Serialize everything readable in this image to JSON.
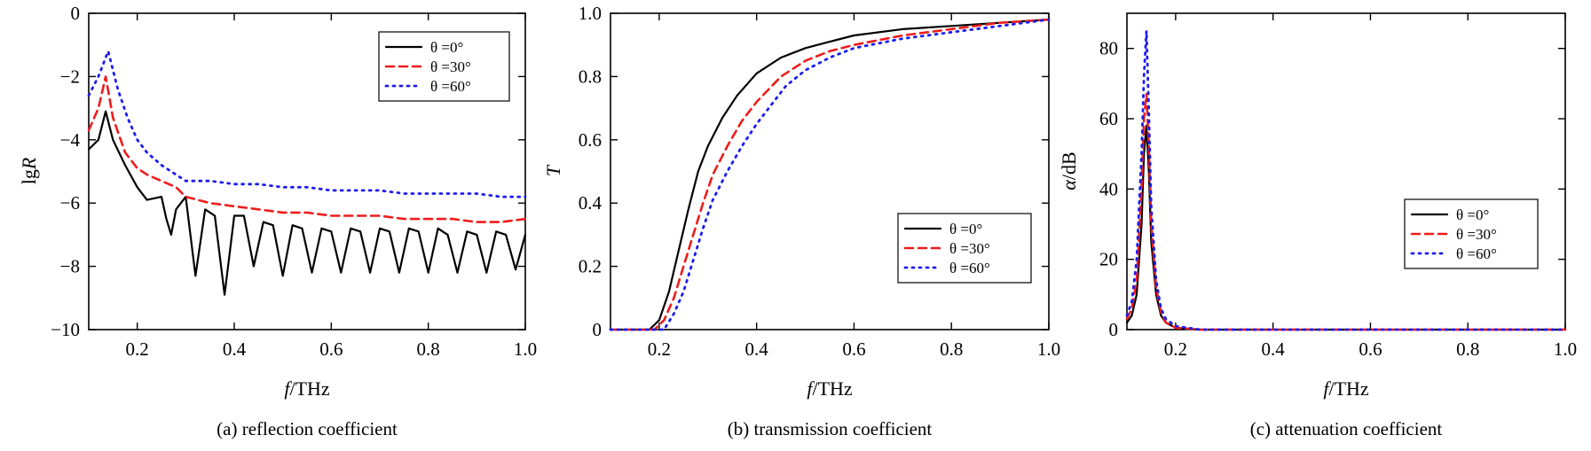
{
  "figure": {
    "panels": [
      {
        "caption": "(a) reflection coefficient"
      },
      {
        "caption": "(b) transmission coefficient"
      },
      {
        "caption": "(c) attenuation coefficient"
      }
    ]
  },
  "legend_labels": [
    "θ =0°",
    "θ =30°",
    "θ =60°"
  ],
  "series_colors": [
    "#000000",
    "#ee1c1c",
    "#1c1cee"
  ],
  "series_styles": [
    "solid",
    "dashed",
    "dotted"
  ],
  "chart_data": [
    {
      "type": "line",
      "title": "(a) reflection coefficient",
      "xlabel_italic": "f",
      "xlabel_rest": "/THz",
      "ylabel_rest": "lg",
      "ylabel_italic": "R",
      "xlim": [
        0.1,
        1.0
      ],
      "ylim": [
        -10,
        0
      ],
      "xticks": [
        0.2,
        0.4,
        0.6,
        0.8,
        1.0
      ],
      "xtick_labels": [
        "0.2",
        "0.4",
        "0.6",
        "0.8",
        "1.0"
      ],
      "yticks": [
        -10,
        -8,
        -6,
        -4,
        -2,
        0
      ],
      "ytick_labels": [
        "−10",
        "−8",
        "−6",
        "−4",
        "−2",
        "0"
      ],
      "legend_position": "top-right",
      "series": [
        {
          "name": "θ =0°",
          "x": [
            0.1,
            0.12,
            0.135,
            0.15,
            0.175,
            0.2,
            0.22,
            0.25,
            0.26,
            0.27,
            0.28,
            0.3,
            0.32,
            0.34,
            0.36,
            0.38,
            0.4,
            0.42,
            0.44,
            0.46,
            0.48,
            0.5,
            0.52,
            0.54,
            0.56,
            0.58,
            0.6,
            0.62,
            0.64,
            0.66,
            0.68,
            0.7,
            0.72,
            0.74,
            0.76,
            0.78,
            0.8,
            0.82,
            0.84,
            0.86,
            0.88,
            0.9,
            0.92,
            0.94,
            0.96,
            0.98,
            1.0
          ],
          "y": [
            -4.3,
            -4.0,
            -3.1,
            -4.0,
            -4.8,
            -5.5,
            -5.9,
            -5.8,
            -6.5,
            -7.0,
            -6.2,
            -5.8,
            -8.3,
            -6.2,
            -6.4,
            -8.9,
            -6.4,
            -6.4,
            -8.0,
            -6.6,
            -6.7,
            -8.3,
            -6.7,
            -6.8,
            -8.2,
            -6.8,
            -6.9,
            -8.2,
            -6.8,
            -6.9,
            -8.2,
            -6.8,
            -6.9,
            -8.2,
            -6.8,
            -6.9,
            -8.2,
            -6.8,
            -7.0,
            -8.2,
            -6.9,
            -7.0,
            -8.2,
            -6.9,
            -7.0,
            -8.1,
            -7.0
          ]
        },
        {
          "name": "θ =30°",
          "x": [
            0.1,
            0.12,
            0.135,
            0.15,
            0.175,
            0.2,
            0.22,
            0.25,
            0.28,
            0.3,
            0.35,
            0.4,
            0.45,
            0.5,
            0.55,
            0.6,
            0.65,
            0.7,
            0.75,
            0.8,
            0.85,
            0.9,
            0.95,
            1.0
          ],
          "y": [
            -3.7,
            -3.0,
            -2.0,
            -3.3,
            -4.4,
            -4.9,
            -5.1,
            -5.3,
            -5.5,
            -5.8,
            -6.0,
            -6.1,
            -6.2,
            -6.3,
            -6.3,
            -6.4,
            -6.4,
            -6.4,
            -6.5,
            -6.5,
            -6.5,
            -6.6,
            -6.6,
            -6.5
          ]
        },
        {
          "name": "θ =60°",
          "x": [
            0.1,
            0.12,
            0.14,
            0.16,
            0.18,
            0.2,
            0.22,
            0.25,
            0.28,
            0.3,
            0.35,
            0.4,
            0.45,
            0.5,
            0.55,
            0.6,
            0.65,
            0.7,
            0.75,
            0.8,
            0.85,
            0.9,
            0.95,
            1.0
          ],
          "y": [
            -2.6,
            -2.0,
            -1.2,
            -2.4,
            -3.3,
            -4.0,
            -4.4,
            -4.8,
            -5.1,
            -5.3,
            -5.3,
            -5.4,
            -5.4,
            -5.5,
            -5.5,
            -5.6,
            -5.6,
            -5.6,
            -5.7,
            -5.7,
            -5.7,
            -5.7,
            -5.8,
            -5.8
          ]
        }
      ]
    },
    {
      "type": "line",
      "title": "(b) transmission coefficient",
      "xlabel_italic": "f",
      "xlabel_rest": "/THz",
      "ylabel_rest": "",
      "ylabel_italic": "T",
      "xlim": [
        0.1,
        1.0
      ],
      "ylim": [
        0,
        1.0
      ],
      "xticks": [
        0.2,
        0.4,
        0.6,
        0.8,
        1.0
      ],
      "xtick_labels": [
        "0.2",
        "0.4",
        "0.6",
        "0.8",
        "1.0"
      ],
      "yticks": [
        0,
        0.2,
        0.4,
        0.6,
        0.8,
        1.0
      ],
      "ytick_labels": [
        "0",
        "0.2",
        "0.4",
        "0.6",
        "0.8",
        "1.0"
      ],
      "legend_position": "bottom-right",
      "series": [
        {
          "name": "θ =0°",
          "x": [
            0.1,
            0.18,
            0.2,
            0.22,
            0.24,
            0.26,
            0.28,
            0.3,
            0.33,
            0.36,
            0.4,
            0.45,
            0.5,
            0.55,
            0.6,
            0.7,
            0.8,
            0.9,
            1.0
          ],
          "y": [
            0,
            0,
            0.03,
            0.12,
            0.25,
            0.38,
            0.5,
            0.58,
            0.67,
            0.74,
            0.81,
            0.86,
            0.89,
            0.91,
            0.93,
            0.95,
            0.96,
            0.97,
            0.98
          ]
        },
        {
          "name": "θ =30°",
          "x": [
            0.1,
            0.19,
            0.21,
            0.23,
            0.25,
            0.27,
            0.29,
            0.31,
            0.34,
            0.37,
            0.4,
            0.45,
            0.5,
            0.55,
            0.6,
            0.7,
            0.8,
            0.9,
            1.0
          ],
          "y": [
            0,
            0,
            0.03,
            0.1,
            0.2,
            0.3,
            0.4,
            0.49,
            0.58,
            0.66,
            0.72,
            0.8,
            0.85,
            0.88,
            0.9,
            0.93,
            0.95,
            0.97,
            0.98
          ]
        },
        {
          "name": "θ =60°",
          "x": [
            0.1,
            0.21,
            0.23,
            0.25,
            0.27,
            0.29,
            0.31,
            0.34,
            0.37,
            0.4,
            0.43,
            0.46,
            0.5,
            0.55,
            0.6,
            0.7,
            0.8,
            0.9,
            1.0
          ],
          "y": [
            0,
            0,
            0.05,
            0.12,
            0.22,
            0.32,
            0.41,
            0.5,
            0.58,
            0.65,
            0.71,
            0.77,
            0.82,
            0.86,
            0.89,
            0.92,
            0.94,
            0.96,
            0.98
          ]
        }
      ]
    },
    {
      "type": "line",
      "title": "(c) attenuation coefficient",
      "xlabel_italic": "f",
      "xlabel_rest": "/THz",
      "ylabel_rest": "/dB",
      "ylabel_italic": "α",
      "xlim": [
        0.1,
        1.0
      ],
      "ylim": [
        0,
        90
      ],
      "xticks": [
        0.2,
        0.4,
        0.6,
        0.8,
        1.0
      ],
      "xtick_labels": [
        "0.2",
        "0.4",
        "0.6",
        "0.8",
        "1.0"
      ],
      "yticks": [
        0,
        20,
        40,
        60,
        80
      ],
      "ytick_labels": [
        "0",
        "20",
        "40",
        "60",
        "80"
      ],
      "legend_position": "center-right",
      "series": [
        {
          "name": "θ =0°",
          "x": [
            0.1,
            0.11,
            0.12,
            0.13,
            0.135,
            0.14,
            0.145,
            0.15,
            0.16,
            0.17,
            0.18,
            0.2,
            0.25,
            1.0
          ],
          "y": [
            2,
            4,
            10,
            30,
            50,
            58,
            45,
            25,
            10,
            4,
            2,
            0.5,
            0,
            0
          ]
        },
        {
          "name": "θ =30°",
          "x": [
            0.1,
            0.11,
            0.12,
            0.13,
            0.135,
            0.14,
            0.145,
            0.15,
            0.16,
            0.17,
            0.18,
            0.2,
            0.25,
            1.0
          ],
          "y": [
            3,
            6,
            14,
            40,
            60,
            67,
            52,
            30,
            12,
            5,
            2,
            0.5,
            0,
            0
          ]
        },
        {
          "name": "θ =60°",
          "x": [
            0.1,
            0.11,
            0.12,
            0.13,
            0.135,
            0.14,
            0.145,
            0.15,
            0.16,
            0.17,
            0.18,
            0.2,
            0.25,
            1.0
          ],
          "y": [
            4,
            8,
            20,
            50,
            72,
            85,
            62,
            35,
            14,
            6,
            3,
            1,
            0,
            0
          ]
        }
      ]
    }
  ]
}
